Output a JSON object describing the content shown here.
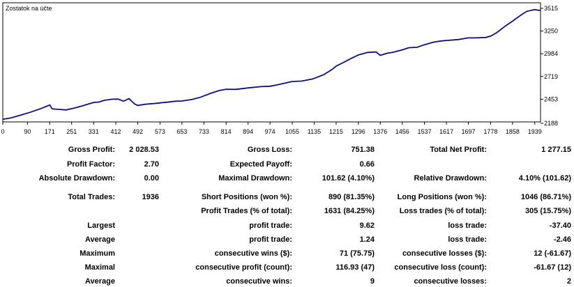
{
  "chart_data": {
    "type": "line",
    "title": "Zostatok na účte",
    "xlabel": "",
    "ylabel": "",
    "x_ticks": [
      "0",
      "90",
      "171",
      "251",
      "331",
      "412",
      "492",
      "573",
      "653",
      "733",
      "814",
      "894",
      "974",
      "1055",
      "1135",
      "1215",
      "1296",
      "1376",
      "1456",
      "1537",
      "1617",
      "1697",
      "1778",
      "1858",
      "1939"
    ],
    "y_ticks": [
      "3515",
      "3250",
      "2984",
      "2719",
      "2453",
      "2188"
    ],
    "xlim": [
      0,
      1960
    ],
    "ylim": [
      2188,
      3580
    ],
    "grid": false,
    "series": [
      {
        "color": "#0c0c80",
        "x": [
          0,
          30,
          60,
          100,
          140,
          171,
          180,
          200,
          230,
          260,
          290,
          331,
          350,
          370,
          400,
          420,
          440,
          460,
          480,
          492,
          520,
          560,
          573,
          600,
          630,
          653,
          690,
          720,
          760,
          790,
          814,
          850,
          894,
          940,
          974,
          1000,
          1055,
          1090,
          1130,
          1170,
          1200,
          1215,
          1240,
          1270,
          1296,
          1330,
          1360,
          1376,
          1400,
          1420,
          1456,
          1480,
          1510,
          1537,
          1570,
          1600,
          1617,
          1660,
          1697,
          1720,
          1760,
          1778,
          1800,
          1830,
          1858,
          1890,
          1910,
          1939,
          1960
        ],
        "y": [
          2218,
          2235,
          2262,
          2300,
          2345,
          2385,
          2340,
          2335,
          2328,
          2348,
          2375,
          2415,
          2420,
          2440,
          2453,
          2455,
          2430,
          2460,
          2400,
          2380,
          2395,
          2405,
          2410,
          2418,
          2430,
          2432,
          2450,
          2475,
          2525,
          2555,
          2570,
          2568,
          2585,
          2600,
          2605,
          2620,
          2660,
          2665,
          2690,
          2740,
          2800,
          2840,
          2880,
          2930,
          2970,
          3000,
          3005,
          2965,
          2990,
          3000,
          3030,
          3055,
          3060,
          3090,
          3120,
          3135,
          3140,
          3150,
          3170,
          3170,
          3175,
          3190,
          3230,
          3305,
          3365,
          3440,
          3480,
          3500,
          3490
        ]
      }
    ]
  },
  "stats": {
    "rows": [
      {
        "c1": "Gross Profit:",
        "v1": "2 028.53",
        "c2": "Gross Loss:",
        "v2": "751.38",
        "c3": "Total Net Profit:",
        "v3": "1 277.15"
      },
      {
        "c1": "Profit Factor:",
        "v1": "2.70",
        "c2": "Expected Payoff:",
        "v2": "0.66",
        "c3": "",
        "v3": ""
      },
      {
        "c1": "Absolute Drawdown:",
        "v1": "0.00",
        "c2": "Maximal Drawdown:",
        "v2": "101.62 (4.10%)",
        "c3": "Relative Drawdown:",
        "v3": "4.10% (101.62)"
      },
      {
        "c1": "Total Trades:",
        "v1": "1936",
        "c2": "Short Positions (won %):",
        "v2": "890 (81.35%)",
        "c3": "Long Positions (won %):",
        "v3": "1046 (86.71%)"
      },
      {
        "c1": "",
        "v1": "",
        "c2": "Profit Trades (% of total):",
        "v2": "1631 (84.25%)",
        "c3": "Loss trades (% of total):",
        "v3": "305 (15.75%)"
      },
      {
        "c1": "Largest",
        "v1": "",
        "c2": "profit trade:",
        "v2": "9.62",
        "c3": "loss trade:",
        "v3": "-37.40"
      },
      {
        "c1": "Average",
        "v1": "",
        "c2": "profit trade:",
        "v2": "1.24",
        "c3": "loss trade:",
        "v3": "-2.46"
      },
      {
        "c1": "Maximum",
        "v1": "",
        "c2": "consecutive wins ($):",
        "v2": "71 (75.75)",
        "c3": "consecutive losses ($):",
        "v3": "12 (-61.67)"
      },
      {
        "c1": "Maximal",
        "v1": "",
        "c2": "consecutive profit (count):",
        "v2": "116.93 (47)",
        "c3": "consecutive loss (count):",
        "v3": "-61.67 (12)"
      },
      {
        "c1": "Average",
        "v1": "",
        "c2": "consecutive wins:",
        "v2": "9",
        "c3": "consecutive losses:",
        "v3": "2"
      }
    ]
  }
}
